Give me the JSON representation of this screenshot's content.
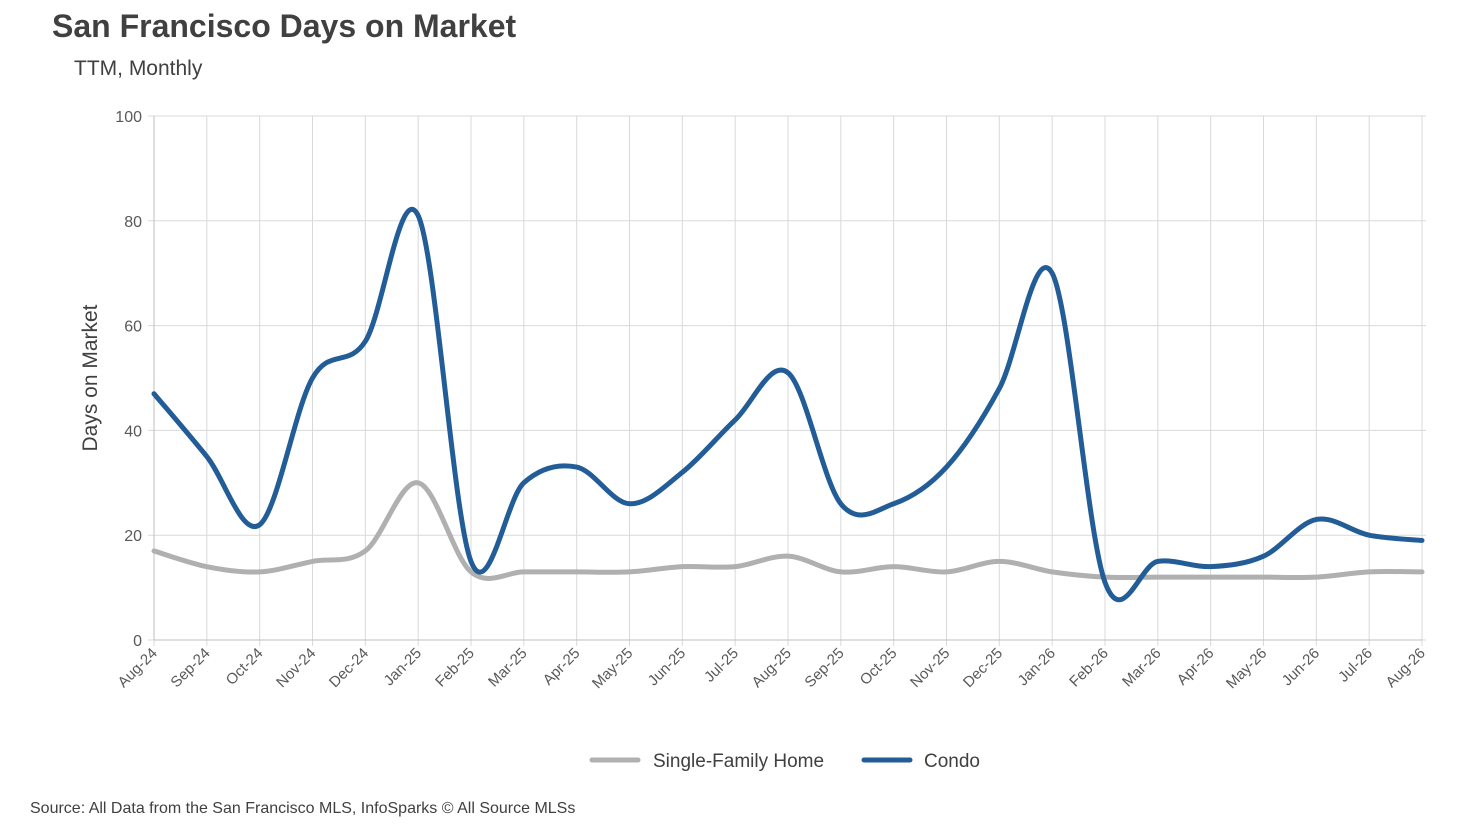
{
  "chart_data": {
    "type": "line",
    "title": "San Francisco Days on Market",
    "subtitle": "TTM, Monthly",
    "ylabel": "Days on Market",
    "xlabel": "",
    "ylim": [
      0,
      100
    ],
    "yticks": [
      0,
      20,
      40,
      60,
      80,
      100
    ],
    "grid": true,
    "legend_position": "bottom",
    "categories": [
      "Aug-24",
      "Sep-24",
      "Oct-24",
      "Nov-24",
      "Dec-24",
      "Jan-25",
      "Feb-25",
      "Mar-25",
      "Apr-25",
      "May-25",
      "Jun-25",
      "Jul-25",
      "Aug-25",
      "Sep-25",
      "Oct-25",
      "Nov-25",
      "Dec-25",
      "Jan-26",
      "Feb-26",
      "Mar-26",
      "Apr-26",
      "May-26",
      "Jun-26",
      "Jul-26",
      "Aug-26"
    ],
    "series": [
      {
        "name": "Single-Family Home",
        "color": "#b0b0b0",
        "values": [
          17,
          14,
          13,
          15,
          17,
          30,
          13,
          13,
          13,
          13,
          14,
          14,
          16,
          13,
          14,
          13,
          15,
          13,
          12,
          12,
          12,
          12,
          12,
          13,
          13
        ]
      },
      {
        "name": "Condo",
        "color": "#235d97",
        "values": [
          47,
          35,
          22,
          50,
          57,
          81,
          15,
          30,
          33,
          26,
          32,
          42,
          51,
          26,
          26,
          33,
          48,
          70,
          11,
          15,
          14,
          16,
          23,
          20,
          19
        ]
      }
    ]
  },
  "footer": {
    "source": "Source: All Data from the San Francisco MLS, InfoSparks © All Source MLSs"
  }
}
